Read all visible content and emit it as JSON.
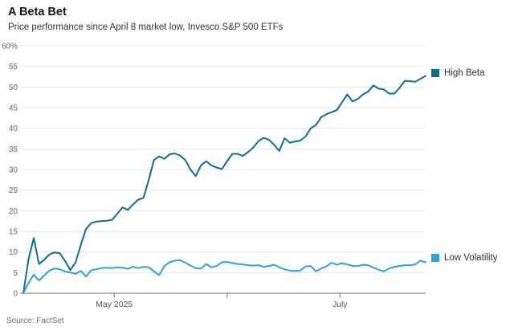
{
  "header": {
    "title": "A Beta Bet",
    "subtitle": "Price performance since April 8 market low, Invesco S&P 500 ETFs"
  },
  "source": "Source: FactSet",
  "legend": [
    {
      "label": "High Beta",
      "color": "#0f6d92"
    },
    {
      "label": "Low Volatility",
      "color": "#2fa3d7"
    }
  ],
  "colors": {
    "gridline": "#e5e5e5",
    "baseline": "#6f6f6f",
    "axis_text": "#676767"
  },
  "chart_data": {
    "type": "line",
    "title": "A Beta Bet",
    "subtitle": "Price performance since April 8 market low, Invesco S&P 500 ETFs",
    "unit": "percent change",
    "x_start": "April 8, 2025",
    "x_end": "late July 2025",
    "grid": "horizontal",
    "legend_position": "right-of-line-ends",
    "y_axis": {
      "min": 0,
      "max": 60,
      "tick_step": 5,
      "ticks": [
        {
          "value": 60,
          "label": "60%"
        },
        {
          "value": 55,
          "label": "55"
        },
        {
          "value": 50,
          "label": "50"
        },
        {
          "value": 45,
          "label": "45"
        },
        {
          "value": 40,
          "label": "40"
        },
        {
          "value": 35,
          "label": "35"
        },
        {
          "value": 30,
          "label": "30"
        },
        {
          "value": 25,
          "label": "25"
        },
        {
          "value": 20,
          "label": "20"
        },
        {
          "value": 15,
          "label": "15"
        },
        {
          "value": 10,
          "label": "10"
        },
        {
          "value": 5,
          "label": "5"
        },
        {
          "value": 0,
          "label": "0"
        }
      ]
    },
    "x_axis": {
      "ticks": [
        {
          "position": 17.4,
          "label": "May 2025"
        },
        {
          "position": 39.0,
          "label": ""
        },
        {
          "position": 60.6,
          "label": "July"
        }
      ],
      "position_domain": [
        0,
        77
      ]
    },
    "series": [
      {
        "name": "High Beta",
        "color": "#0f6d92",
        "values": [
          0,
          8.2,
          13.4,
          7.1,
          8.1,
          9.4,
          9.9,
          9.7,
          7.8,
          5.6,
          7.5,
          11.7,
          15.6,
          17.0,
          17.4,
          17.5,
          17.6,
          17.8,
          19.3,
          20.8,
          20.2,
          21.5,
          22.7,
          23.1,
          27.5,
          32.3,
          33.2,
          32.6,
          33.7,
          33.9,
          33.4,
          32.3,
          30.0,
          28.4,
          31.0,
          32.0,
          31.0,
          30.5,
          30.1,
          32.0,
          33.8,
          33.8,
          33.3,
          34.2,
          35.3,
          36.9,
          37.7,
          37.2,
          36.0,
          34.5,
          37.6,
          36.5,
          36.8,
          37.0,
          38.0,
          40.0,
          40.8,
          42.7,
          43.4,
          43.9,
          44.4,
          46.3,
          48.2,
          46.5,
          47.1,
          48.2,
          48.9,
          50.4,
          49.6,
          49.4,
          48.4,
          48.4,
          49.8,
          51.5,
          51.4,
          51.3,
          52.0,
          52.7
        ]
      },
      {
        "name": "Low Volatility",
        "color": "#2fa3d7",
        "values": [
          0,
          2.5,
          4.5,
          3.1,
          4.3,
          5.5,
          6.0,
          5.8,
          5.3,
          5.0,
          4.7,
          5.4,
          4.1,
          5.6,
          5.8,
          6.1,
          6.2,
          6.1,
          6.3,
          6.2,
          5.9,
          6.4,
          6.1,
          6.4,
          6.3,
          5.3,
          4.4,
          6.6,
          7.5,
          7.9,
          8.0,
          7.4,
          6.7,
          6.1,
          6.0,
          7.1,
          6.3,
          6.6,
          7.5,
          7.6,
          7.3,
          7.1,
          7.0,
          6.8,
          6.7,
          6.8,
          6.4,
          6.6,
          6.9,
          6.3,
          5.8,
          5.5,
          5.4,
          5.5,
          6.5,
          6.6,
          5.3,
          6.0,
          6.5,
          7.4,
          6.9,
          7.3,
          7.0,
          6.6,
          6.6,
          6.9,
          6.8,
          6.2,
          5.7,
          5.3,
          6.0,
          6.4,
          6.6,
          6.8,
          6.8,
          7.0,
          7.9,
          7.5
        ]
      }
    ]
  }
}
